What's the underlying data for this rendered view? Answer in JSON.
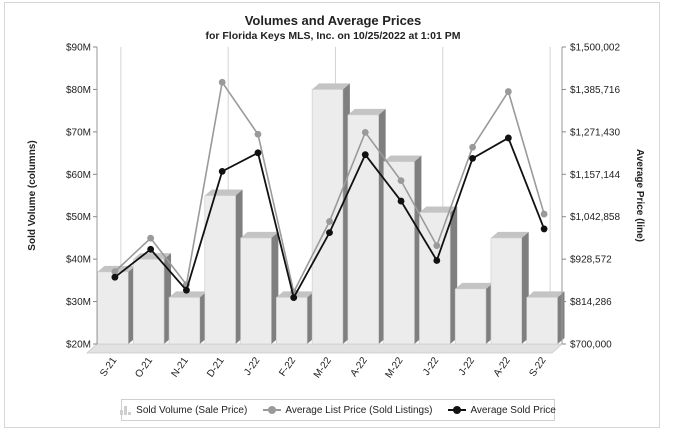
{
  "chart_data": {
    "type": "bar+line",
    "title": "Volumes and Average Prices",
    "subtitle": "for Florida Keys MLS, Inc. on 10/25/2022 at 1:01 PM",
    "categories": [
      "S-21",
      "O-21",
      "N-21",
      "D-21",
      "J-22",
      "F-22",
      "M-22",
      "A-22",
      "M-22",
      "J-22",
      "J-22",
      "A-22",
      "S-22"
    ],
    "ylabel_left": "Sold Volume (columns)",
    "ylabel_right": "Average Price (line)",
    "left_axis": {
      "min": 20,
      "max": 90,
      "ticks": [
        20,
        30,
        40,
        50,
        60,
        70,
        80,
        90
      ],
      "tick_labels": [
        "$20M",
        "$30M",
        "$40M",
        "$50M",
        "$60M",
        "$70M",
        "$80M",
        "$90M"
      ]
    },
    "right_axis": {
      "min": 700000,
      "max": 1500002,
      "ticks": [
        700000,
        814286,
        928572,
        1042858,
        1157144,
        1271430,
        1385716,
        1500002
      ],
      "tick_labels": [
        "$700,000",
        "$814,286",
        "$928,572",
        "$1,042,858",
        "$1,157,144",
        "$1,271,430",
        "$1,385,716",
        "$1,500,002"
      ]
    },
    "series": [
      {
        "name": "Sold Volume (Sale Price)",
        "type": "bar",
        "axis": "left",
        "color": "#ececec",
        "values": [
          37,
          40,
          31,
          55,
          45,
          31,
          80,
          74,
          63,
          51,
          33,
          45,
          31
        ]
      },
      {
        "name": "Average List Price (Sold Listings)",
        "type": "line",
        "axis": "right",
        "color": "#9a9a9a",
        "values": [
          895000,
          985000,
          860000,
          1405000,
          1265000,
          840000,
          1030000,
          1270000,
          1140000,
          965000,
          1230000,
          1380000,
          1050000
        ]
      },
      {
        "name": "Average Sold Price",
        "type": "line",
        "axis": "right",
        "color": "#111111",
        "values": [
          880000,
          955000,
          845000,
          1165000,
          1215000,
          825000,
          1000000,
          1210000,
          1085000,
          925000,
          1200000,
          1255000,
          1010000
        ]
      }
    ],
    "legend_position": "bottom",
    "grid": "vertical"
  }
}
